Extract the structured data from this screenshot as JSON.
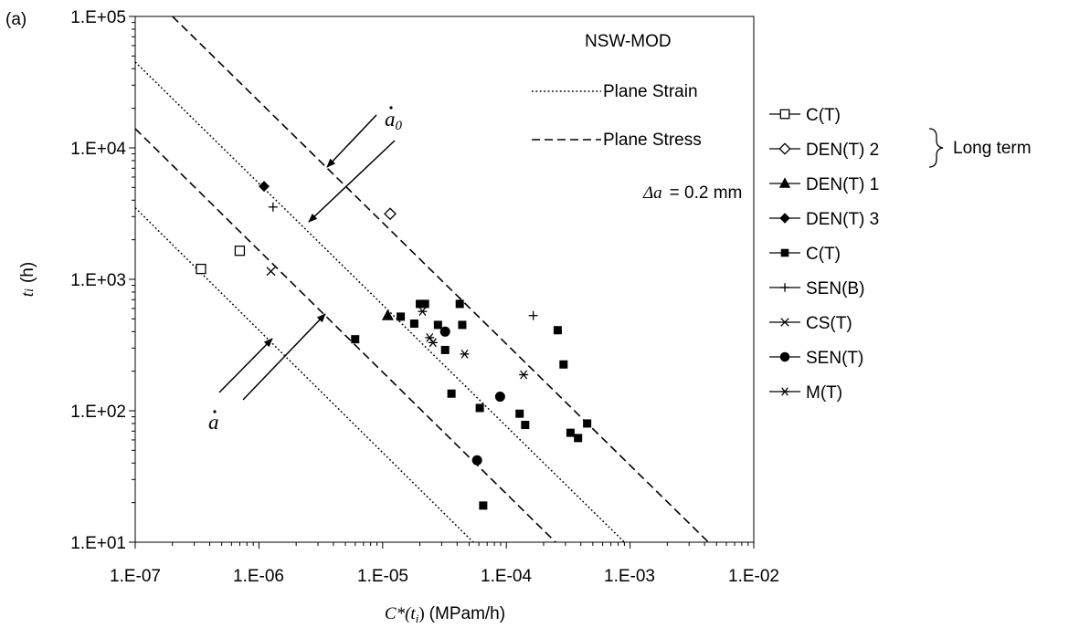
{
  "panel_label": "(a)",
  "chart_data": {
    "type": "scatter",
    "title": "NSW-MOD",
    "xlabel": {
      "symbol": "C*",
      "arg": "(t",
      "sub": "i",
      "close": ")",
      "units": "(MPam/h)"
    },
    "ylabel": {
      "symbol": "t",
      "sub": "i",
      "units": "(h)"
    },
    "xscale": "log",
    "yscale": "log",
    "xlim": [
      1e-07,
      0.01
    ],
    "ylim": [
      10,
      100000
    ],
    "x_ticks": [
      "1.E-07",
      "1.E-06",
      "1.E-05",
      "1.E-04",
      "1.E-03",
      "1.E-02"
    ],
    "y_ticks": [
      "1.E+01",
      "1.E+02",
      "1.E+03",
      "1.E+04",
      "1.E+05"
    ],
    "grid": false,
    "legend_position": "right",
    "annotations": {
      "plane_strain": "Plane Strain",
      "plane_stress": "Plane Stress",
      "delta_a_symbol": "Δa",
      "delta_a_value": "=  0.2 mm",
      "a0_symbol": "a",
      "a0_sub": "0",
      "a_symbol": "a",
      "long_term": "Long term"
    },
    "lines": [
      {
        "name": "Plane Strain",
        "style": "dotted",
        "points": [
          [
            1e-07,
            3500
          ],
          [
            5.4e-05,
            10
          ]
        ]
      },
      {
        "name": "Plane Stress",
        "style": "dashed",
        "points": [
          [
            1e-07,
            14000
          ],
          [
            0.00025,
            10
          ]
        ]
      },
      {
        "name": "Plane Strain",
        "style": "dotted",
        "points": [
          [
            1e-07,
            45000
          ],
          [
            0.0009,
            10
          ]
        ]
      },
      {
        "name": "Plane Stress",
        "style": "dashed",
        "points": [
          [
            2e-07,
            100000
          ],
          [
            0.0043,
            10
          ]
        ]
      }
    ],
    "series": [
      {
        "name": "C(T)",
        "marker": "square-open",
        "points": [
          [
            3.4e-07,
            1200
          ],
          [
            7e-07,
            1650
          ]
        ]
      },
      {
        "name": "DEN(T) 2",
        "marker": "diamond-open",
        "points": [
          [
            1.15e-05,
            3150
          ]
        ]
      },
      {
        "name": "DEN(T) 1",
        "marker": "triangle-filled",
        "points": [
          [
            1.1e-05,
            530
          ]
        ]
      },
      {
        "name": "DEN(T) 3",
        "marker": "diamond-filled",
        "points": [
          [
            1.1e-06,
            5100
          ]
        ]
      },
      {
        "name": "C(T)",
        "marker": "square-filled",
        "points": [
          [
            6e-06,
            350
          ],
          [
            1.4e-05,
            520
          ],
          [
            1.8e-05,
            460
          ],
          [
            2e-05,
            650
          ],
          [
            2.2e-05,
            650
          ],
          [
            2.8e-05,
            450
          ],
          [
            3.2e-05,
            290
          ],
          [
            3.6e-05,
            135
          ],
          [
            4.2e-05,
            650
          ],
          [
            4.4e-05,
            450
          ],
          [
            6.1e-05,
            105
          ],
          [
            6.5e-05,
            19
          ],
          [
            0.000128,
            95
          ],
          [
            0.000142,
            78
          ],
          [
            0.00026,
            410
          ],
          [
            0.00029,
            225
          ],
          [
            0.00033,
            68
          ],
          [
            0.00038,
            62
          ],
          [
            0.00045,
            80
          ]
        ]
      },
      {
        "name": "SEN(B)",
        "marker": "plus",
        "points": [
          [
            1.3e-06,
            3550
          ],
          [
            0.000165,
            530
          ]
        ]
      },
      {
        "name": "CS(T)",
        "marker": "cross",
        "points": [
          [
            1.25e-06,
            1150
          ]
        ]
      },
      {
        "name": "SEN(T)",
        "marker": "circle-filled",
        "points": [
          [
            3.2e-05,
            400
          ],
          [
            5.8e-05,
            42
          ],
          [
            8.9e-05,
            128
          ]
        ]
      },
      {
        "name": "M(T)",
        "marker": "asterisk",
        "points": [
          [
            2.1e-05,
            570
          ],
          [
            2.4e-05,
            360
          ],
          [
            2.55e-05,
            330
          ],
          [
            4.6e-05,
            270
          ],
          [
            0.000138,
            188
          ]
        ]
      }
    ]
  }
}
